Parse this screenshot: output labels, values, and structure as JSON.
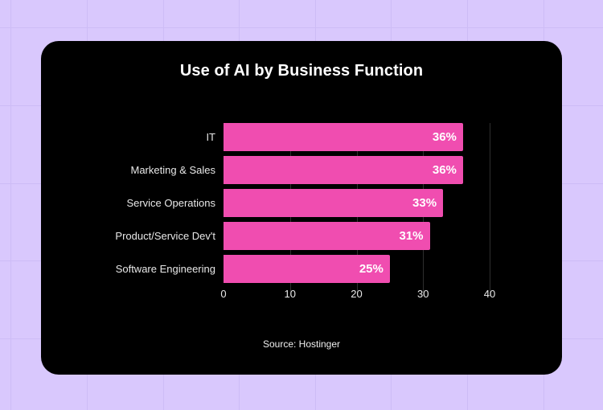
{
  "colors": {
    "background": "#d9c8fd",
    "card": "#000000",
    "bar": "#f04db0",
    "text": "#ffffff"
  },
  "chart_data": {
    "type": "bar",
    "orientation": "horizontal",
    "title": "Use of AI by Business Function",
    "categories": [
      "IT",
      "Marketing & Sales",
      "Service Operations",
      "Product/Service Dev't",
      "Software Engineering"
    ],
    "values": [
      36,
      36,
      33,
      31,
      25
    ],
    "value_labels": [
      "36%",
      "36%",
      "33%",
      "31%",
      "25%"
    ],
    "xlabel": "",
    "ylabel": "",
    "xlim": [
      0,
      40
    ],
    "xticks": [
      "0",
      "10",
      "20",
      "30",
      "40"
    ],
    "grid": true,
    "legend": null,
    "source": "Source: Hostinger"
  }
}
